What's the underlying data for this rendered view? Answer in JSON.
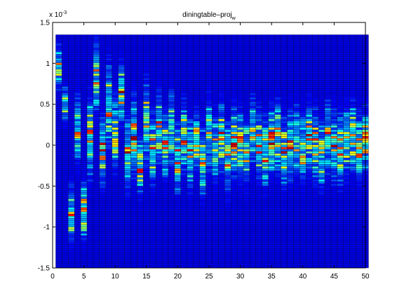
{
  "chart_data": {
    "type": "heatmap",
    "title": "diningtable–proj",
    "title_subscript": "w",
    "xlabel": "",
    "ylabel": "",
    "xlim": [
      0,
      50
    ],
    "ylim": [
      -1.5,
      1.5
    ],
    "y_data_top": 1.35,
    "y_exponent_label": "x 10",
    "y_exponent": "-3",
    "x_ticks": [
      0,
      5,
      10,
      15,
      20,
      25,
      30,
      35,
      40,
      45,
      50
    ],
    "y_ticks": [
      -1.5,
      -1,
      -0.5,
      0,
      0.5,
      1,
      1.5
    ],
    "x_tick_labels": [
      "0",
      "5",
      "10",
      "15",
      "20",
      "25",
      "30",
      "35",
      "40",
      "45",
      "50"
    ],
    "y_tick_labels": [
      "-1.5",
      "-1",
      "-0.5",
      "0",
      "0.5",
      "1",
      "1.5"
    ],
    "columns": 50,
    "rows": 108,
    "colormap": "jet",
    "background_color": "#0a1e9a",
    "grid": false,
    "description_of_columns": [
      {
        "x": 1,
        "center": 0.95,
        "spread": 0.18
      },
      {
        "x": 2,
        "center": 0.5,
        "spread": 0.15
      },
      {
        "x": 3,
        "center": -0.85,
        "spread": 0.25
      },
      {
        "x": 4,
        "center": 0.2,
        "spread": 0.3
      },
      {
        "x": 5,
        "center": -0.8,
        "spread": 0.25
      },
      {
        "x": 6,
        "center": 0.1,
        "spread": 0.35
      },
      {
        "x": 7,
        "center": 0.85,
        "spread": 0.3
      },
      {
        "x": 8,
        "center": -0.05,
        "spread": 0.3
      },
      {
        "x": 9,
        "center": 0.5,
        "spread": 0.35
      },
      {
        "x": 10,
        "center": 0.15,
        "spread": 0.3
      },
      {
        "x": 11,
        "center": 0.65,
        "spread": 0.25
      },
      {
        "x": 12,
        "center": -0.1,
        "spread": 0.3
      },
      {
        "x": 13,
        "center": 0.1,
        "spread": 0.35
      },
      {
        "x": 14,
        "center": -0.25,
        "spread": 0.25
      },
      {
        "x": 15,
        "center": 0.3,
        "spread": 0.35
      },
      {
        "x": 16,
        "center": -0.05,
        "spread": 0.3
      },
      {
        "x": 17,
        "center": 0.2,
        "spread": 0.3
      },
      {
        "x": 18,
        "center": 0.0,
        "spread": 0.3
      },
      {
        "x": 19,
        "center": 0.2,
        "spread": 0.3
      },
      {
        "x": 20,
        "center": -0.15,
        "spread": 0.3
      },
      {
        "x": 21,
        "center": 0.1,
        "spread": 0.3
      },
      {
        "x": 22,
        "center": -0.1,
        "spread": 0.3
      },
      {
        "x": 23,
        "center": 0.05,
        "spread": 0.25
      },
      {
        "x": 24,
        "center": -0.2,
        "spread": 0.3
      },
      {
        "x": 25,
        "center": 0.15,
        "spread": 0.3
      },
      {
        "x": 26,
        "center": -0.05,
        "spread": 0.3
      },
      {
        "x": 27,
        "center": 0.1,
        "spread": 0.3
      },
      {
        "x": 28,
        "center": -0.15,
        "spread": 0.3
      },
      {
        "x": 29,
        "center": 0.05,
        "spread": 0.3
      },
      {
        "x": 30,
        "center": 0.0,
        "spread": 0.3
      },
      {
        "x": 31,
        "center": -0.1,
        "spread": 0.3
      },
      {
        "x": 32,
        "center": 0.15,
        "spread": 0.3
      },
      {
        "x": 33,
        "center": 0.0,
        "spread": 0.3
      },
      {
        "x": 34,
        "center": -0.1,
        "spread": 0.3
      },
      {
        "x": 35,
        "center": 0.05,
        "spread": 0.3
      },
      {
        "x": 36,
        "center": 0.1,
        "spread": 0.3
      },
      {
        "x": 37,
        "center": -0.1,
        "spread": 0.3
      },
      {
        "x": 38,
        "center": 0.0,
        "spread": 0.3
      },
      {
        "x": 39,
        "center": 0.05,
        "spread": 0.3
      },
      {
        "x": 40,
        "center": -0.05,
        "spread": 0.3
      },
      {
        "x": 41,
        "center": 0.1,
        "spread": 0.3
      },
      {
        "x": 42,
        "center": 0.0,
        "spread": 0.3
      },
      {
        "x": 43,
        "center": -0.1,
        "spread": 0.3
      },
      {
        "x": 44,
        "center": 0.1,
        "spread": 0.3
      },
      {
        "x": 45,
        "center": 0.0,
        "spread": 0.3
      },
      {
        "x": 46,
        "center": -0.05,
        "spread": 0.3
      },
      {
        "x": 47,
        "center": 0.05,
        "spread": 0.3
      },
      {
        "x": 48,
        "center": 0.1,
        "spread": 0.3
      },
      {
        "x": 49,
        "center": -0.05,
        "spread": 0.3
      },
      {
        "x": 50,
        "center": 0.05,
        "spread": 0.3
      }
    ]
  }
}
